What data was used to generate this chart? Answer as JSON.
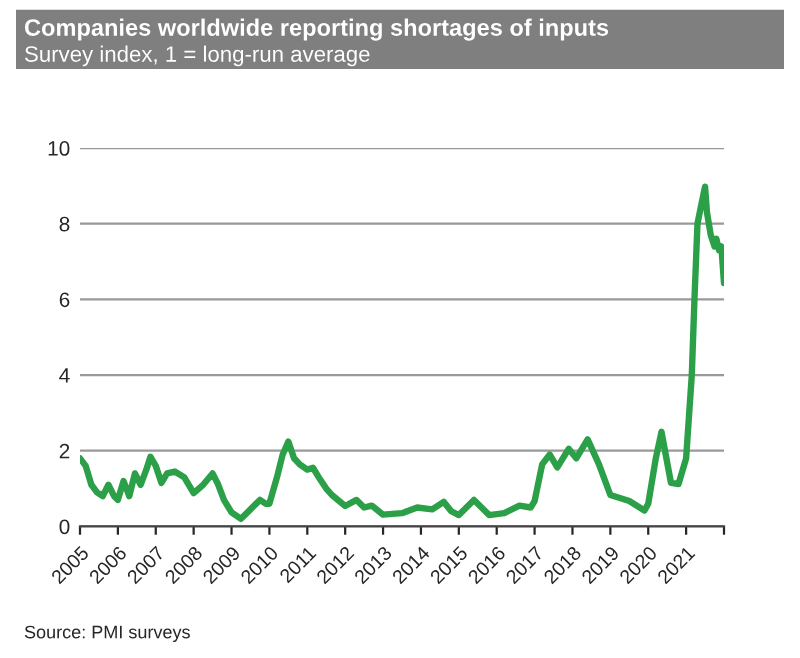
{
  "chart_data": {
    "type": "line",
    "title": "Companies worldwide reporting shortages of inputs",
    "subtitle": "Survey index, 1 = long-run average",
    "annotations": [
      "Source: PMI surveys"
    ],
    "series": [
      {
        "color": "#2ca048",
        "x": [
          2005.0,
          2005.15,
          2005.3,
          2005.45,
          2005.6,
          2005.75,
          2005.9,
          2006.0,
          2006.15,
          2006.3,
          2006.45,
          2006.6,
          2006.75,
          2006.86,
          2007.0,
          2007.15,
          2007.3,
          2007.5,
          2007.75,
          2008.0,
          2008.25,
          2008.5,
          2008.65,
          2008.8,
          2009.0,
          2009.25,
          2009.5,
          2009.75,
          2009.9,
          2010.0,
          2010.2,
          2010.35,
          2010.5,
          2010.65,
          2010.8,
          2011.0,
          2011.15,
          2011.3,
          2011.5,
          2011.65,
          2012.0,
          2012.3,
          2012.5,
          2012.7,
          2013.0,
          2013.5,
          2013.9,
          2014.3,
          2014.6,
          2014.8,
          2015.0,
          2015.4,
          2015.8,
          2016.2,
          2016.6,
          2016.9,
          2017.0,
          2017.2,
          2017.4,
          2017.6,
          2017.9,
          2018.1,
          2018.4,
          2018.7,
          2019.0,
          2019.5,
          2019.9,
          2020.0,
          2020.2,
          2020.35,
          2020.6,
          2020.8,
          2021.0,
          2021.15,
          2021.22,
          2021.3,
          2021.4,
          2021.5,
          2021.55,
          2021.65,
          2021.75,
          2021.8,
          2021.87,
          2021.93,
          2022.0
        ],
        "values": [
          1.8,
          1.6,
          1.1,
          0.9,
          0.8,
          1.1,
          0.8,
          0.7,
          1.2,
          0.8,
          1.4,
          1.1,
          1.5,
          1.84,
          1.6,
          1.15,
          1.4,
          1.45,
          1.3,
          0.88,
          1.1,
          1.4,
          1.1,
          0.7,
          0.37,
          0.2,
          0.45,
          0.7,
          0.6,
          0.6,
          1.3,
          1.9,
          2.24,
          1.8,
          1.64,
          1.5,
          1.55,
          1.3,
          1.0,
          0.83,
          0.54,
          0.7,
          0.5,
          0.55,
          0.31,
          0.35,
          0.5,
          0.45,
          0.65,
          0.4,
          0.3,
          0.7,
          0.3,
          0.35,
          0.55,
          0.5,
          0.67,
          1.64,
          1.9,
          1.56,
          2.05,
          1.8,
          2.3,
          1.64,
          0.83,
          0.67,
          0.42,
          0.6,
          1.8,
          2.5,
          1.15,
          1.12,
          1.8,
          4.0,
          6.0,
          8.0,
          8.5,
          8.98,
          8.3,
          7.7,
          7.4,
          7.6,
          7.3,
          7.4,
          6.43
        ]
      }
    ],
    "xlim": [
      2005,
      2022
    ],
    "xticks": [
      2005,
      2006,
      2007,
      2008,
      2009,
      2010,
      2011,
      2012,
      2013,
      2014,
      2015,
      2016,
      2017,
      2018,
      2019,
      2020,
      2021,
      {
        "value": 2022,
        "label": null
      }
    ],
    "ylim": [
      0,
      10
    ],
    "yticks": [
      0,
      2,
      4,
      6,
      8,
      10
    ],
    "grid": "y",
    "legend": false,
    "line_style": "solid",
    "marker": "none"
  }
}
